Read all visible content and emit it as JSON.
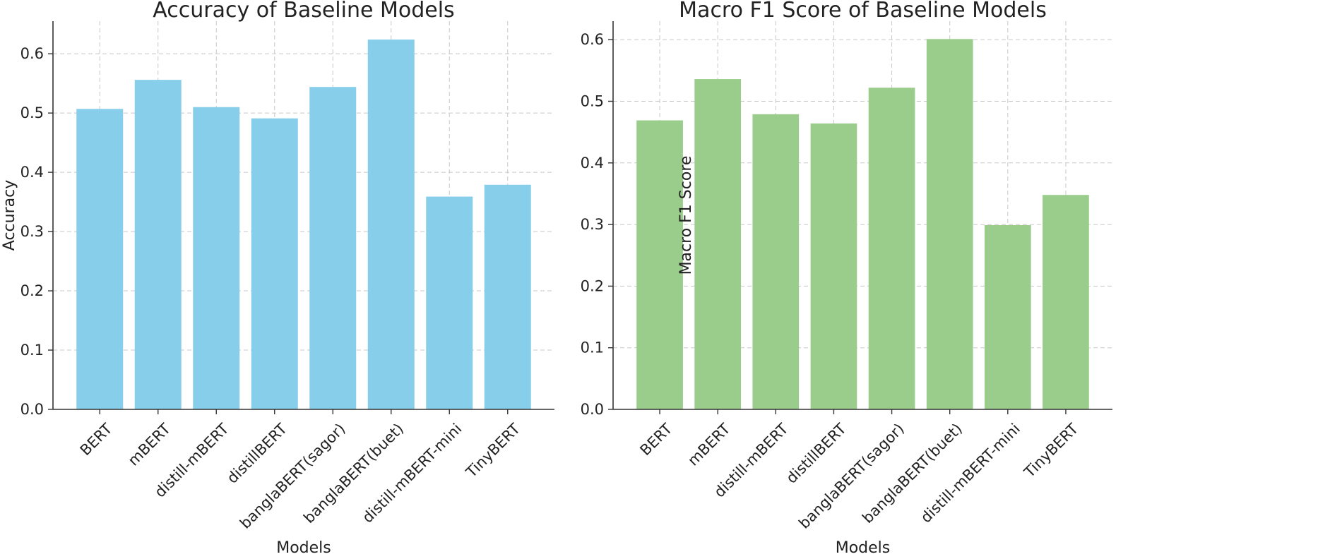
{
  "chart_data": [
    {
      "type": "bar",
      "title": "Accuracy of Baseline Models",
      "xlabel": "Models",
      "ylabel": "Accuracy",
      "categories": [
        "BERT",
        "mBERT",
        "distill-mBERT",
        "distillBERT",
        "banglaBERT(sagor)",
        "banglaBERT(buet)",
        "distill-mBERT-mini",
        "TinyBERT"
      ],
      "values": [
        0.507,
        0.556,
        0.51,
        0.491,
        0.544,
        0.624,
        0.359,
        0.379
      ],
      "ylim": [
        0,
        0.655
      ],
      "yticks": [
        0.0,
        0.1,
        0.2,
        0.3,
        0.4,
        0.5,
        0.6
      ],
      "ytick_labels": [
        "0.0",
        "0.1",
        "0.2",
        "0.3",
        "0.4",
        "0.5",
        "0.6"
      ],
      "grid": true,
      "color": "#87CEEB"
    },
    {
      "type": "bar",
      "title": "Macro F1 Score of Baseline Models",
      "xlabel": "Models",
      "ylabel": "Macro F1 Score",
      "categories": [
        "BERT",
        "mBERT",
        "distill-mBERT",
        "distillBERT",
        "banglaBERT(sagor)",
        "banglaBERT(buet)",
        "distill-mBERT-mini",
        "TinyBERT"
      ],
      "values": [
        0.469,
        0.536,
        0.479,
        0.464,
        0.522,
        0.601,
        0.299,
        0.348
      ],
      "ylim": [
        0,
        0.63
      ],
      "yticks": [
        0.0,
        0.1,
        0.2,
        0.3,
        0.4,
        0.5,
        0.6
      ],
      "ytick_labels": [
        "0.0",
        "0.1",
        "0.2",
        "0.3",
        "0.4",
        "0.5",
        "0.6"
      ],
      "grid": true,
      "color": "#9ACD8B"
    }
  ]
}
